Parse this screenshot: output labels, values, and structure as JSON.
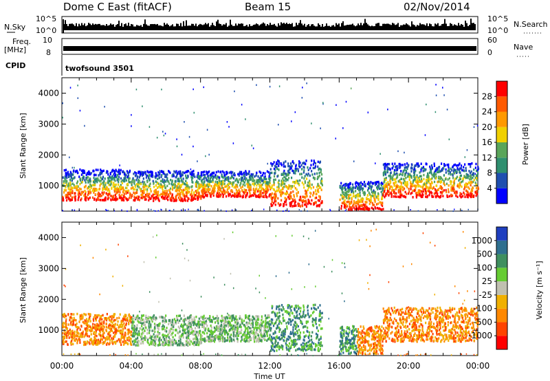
{
  "header": {
    "radar": "Dome C East (fitACF)",
    "beam": "Beam 15",
    "date": "02/Nov/2014"
  },
  "strips": {
    "nsky_label": "N.Sky",
    "nsky_top": "10^5",
    "nsky_bottom": "10^0",
    "nsearch_label": "N.Search",
    "freq_label_1": "Freq.",
    "freq_label_2": "[MHz]",
    "freq_top": "10",
    "freq_bottom": "8",
    "nave_top": "60",
    "nave_bottom": "0",
    "nave_label": "Nave",
    "cpid_label": "CPID",
    "cpid_value": "twofsound 3501"
  },
  "chart_data": [
    {
      "type": "heatmap",
      "title": "",
      "xlabel": "Time UT",
      "ylabel": "Slant Range [km]",
      "x_ticks": [
        "00:00",
        "04:00",
        "08:00",
        "12:00",
        "16:00",
        "20:00",
        "00:00"
      ],
      "y_ticks": [
        "1000",
        "2000",
        "3000",
        "4000"
      ],
      "ylim": [
        180,
        4500
      ],
      "xlim_hours": [
        0,
        24
      ],
      "colorbar": {
        "label": "Power [dB]",
        "ticks": [
          "4",
          "8",
          "12",
          "16",
          "20",
          "24",
          "28"
        ],
        "range": [
          0,
          30
        ]
      },
      "approx_echo_bands_hours_km": [
        {
          "t0": 0,
          "t1": 4,
          "r0": 500,
          "r1": 1500
        },
        {
          "t0": 4,
          "t1": 8,
          "r0": 480,
          "r1": 1450
        },
        {
          "t0": 8,
          "t1": 12,
          "r0": 600,
          "r1": 1450
        },
        {
          "t0": 12,
          "t1": 15,
          "r0": 300,
          "r1": 1800
        },
        {
          "t0": 16,
          "t1": 18.5,
          "r0": 200,
          "r1": 1100
        },
        {
          "t0": 18.5,
          "t1": 24,
          "r0": 600,
          "r1": 1700
        }
      ]
    },
    {
      "type": "heatmap",
      "title": "",
      "xlabel": "Time UT",
      "ylabel": "Slant Range [km]",
      "x_ticks": [
        "00:00",
        "04:00",
        "08:00",
        "12:00",
        "16:00",
        "20:00",
        "00:00"
      ],
      "y_ticks": [
        "1000",
        "2000",
        "3000",
        "4000"
      ],
      "ylim": [
        180,
        4500
      ],
      "xlim_hours": [
        0,
        24
      ],
      "colorbar": {
        "label": "Velocity [m s⁻¹]",
        "ticks": [
          "1000",
          "500",
          "100",
          "25",
          "-25",
          "-100",
          "-500",
          "-1000"
        ]
      }
    }
  ],
  "colors": {
    "power_scale": [
      "#0000ff",
      "#1f4fb0",
      "#2f8f6f",
      "#5aa55a",
      "#f0d000",
      "#ff9900",
      "#ff5a00",
      "#ff0000"
    ],
    "velocity_scale": [
      "#1f3fbf",
      "#2f6f8f",
      "#3f8f5f",
      "#66cc33",
      "#c0c0b0",
      "#f0b000",
      "#ff8800",
      "#ff4400",
      "#ff0000"
    ]
  }
}
